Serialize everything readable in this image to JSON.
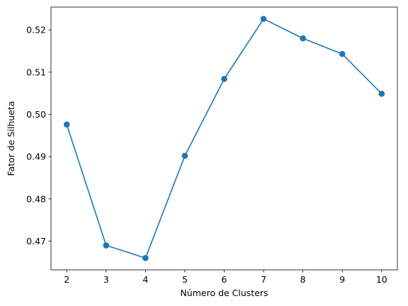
{
  "chart_data": {
    "type": "line",
    "title": "",
    "xlabel": "Número de Clusters",
    "ylabel": "Fator de Silhueta",
    "x": [
      2,
      3,
      4,
      5,
      6,
      7,
      8,
      9,
      10
    ],
    "series": [
      {
        "values": [
          0.4976,
          0.469,
          0.466,
          0.4902,
          0.5084,
          0.5226,
          0.518,
          0.5143,
          0.5049
        ],
        "color": "#1f77b4",
        "marker": "circle"
      }
    ],
    "xlim": [
      1.6,
      10.4
    ],
    "ylim": [
      0.4632,
      0.5254
    ],
    "xticks": [
      2,
      3,
      4,
      5,
      6,
      7,
      8,
      9,
      10
    ],
    "xtick_labels": [
      "2",
      "3",
      "4",
      "5",
      "6",
      "7",
      "8",
      "9",
      "10"
    ],
    "yticks": [
      0.47,
      0.48,
      0.49,
      0.5,
      0.51,
      0.52
    ],
    "ytick_labels": [
      "0.47",
      "0.48",
      "0.49",
      "0.50",
      "0.51",
      "0.52"
    ],
    "grid": false,
    "legend": "none"
  }
}
